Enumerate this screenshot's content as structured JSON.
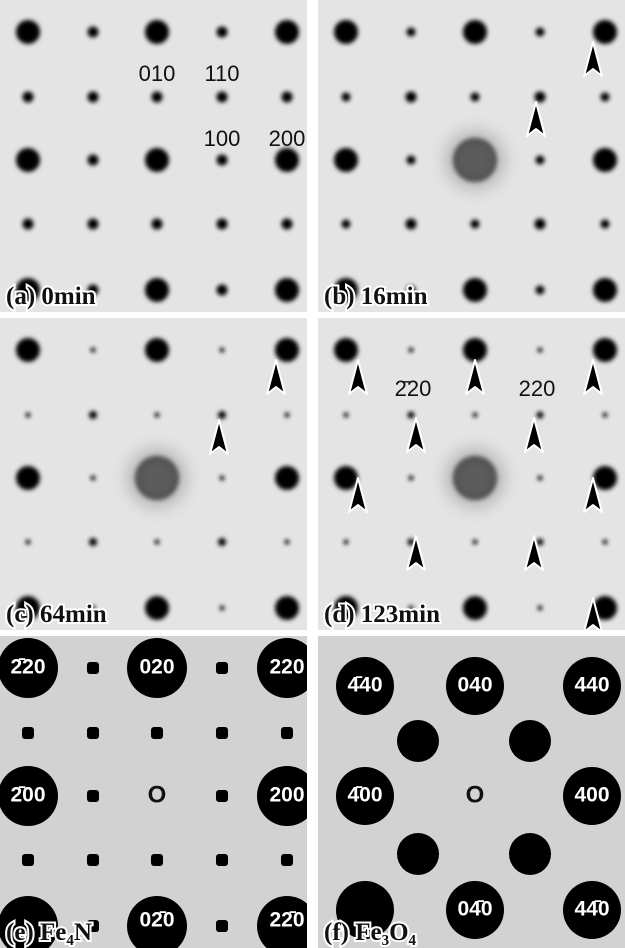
{
  "panels": [
    {
      "label": "(a) 0min",
      "spot_labels": [
        "010",
        "110",
        "100",
        "200"
      ]
    },
    {
      "label": "(b) 16min",
      "spot_labels": []
    },
    {
      "label": "(c) 64min",
      "spot_labels": []
    },
    {
      "label": "(d) 123min",
      "spot_labels": [
        "2̄20",
        "220"
      ]
    },
    {
      "label": "(e) Fe₄N",
      "spot_labels": [
        "2̄20",
        "020",
        "220",
        "2̄00",
        "O",
        "200",
        "02̄0",
        "22̄0"
      ]
    },
    {
      "label": "(f) Fe₃O₄",
      "spot_labels": [
        "4̄40",
        "040",
        "440",
        "4̄00",
        "O",
        "400",
        "04̄0",
        "44̄0"
      ]
    }
  ]
}
